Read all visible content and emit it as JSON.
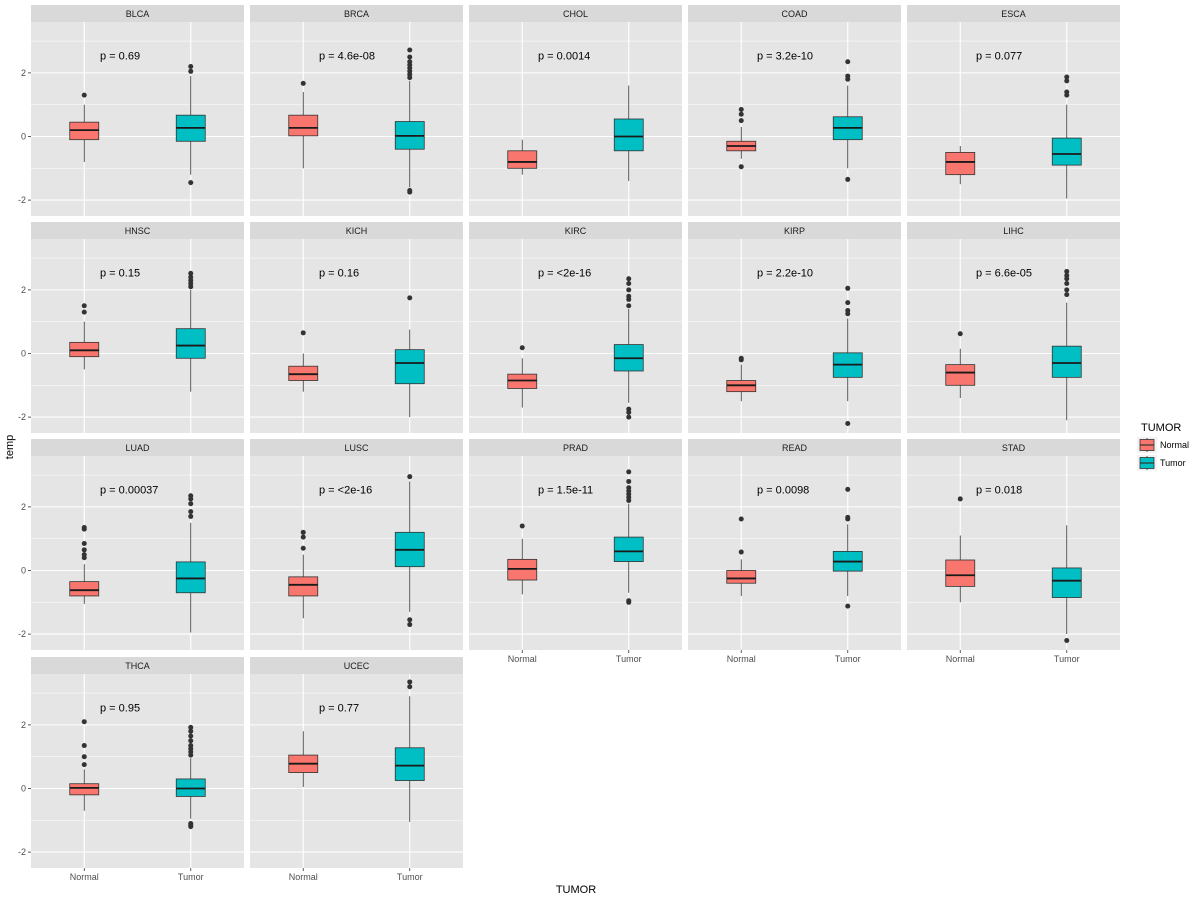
{
  "chart_data": {
    "type": "boxplot",
    "xlabel": "TUMOR",
    "ylabel": "temp",
    "ylim": [
      -2.5,
      3.6
    ],
    "yticks": [
      -2,
      0,
      2
    ],
    "ytick_labels": [
      "-2",
      "0",
      "2"
    ],
    "categories": [
      "Normal",
      "Tumor"
    ],
    "legend": {
      "title": "TUMOR",
      "position": "right",
      "entries": [
        {
          "label": "Normal",
          "color": "#F8766D"
        },
        {
          "label": "Tumor",
          "color": "#00BFC4"
        }
      ]
    },
    "colors": {
      "Normal": "#F8766D",
      "Tumor": "#00BFC4",
      "panel_bg": "#E5E5E5",
      "strip_bg": "#D9D9D9",
      "grid": "#FFFFFF"
    },
    "panels": [
      {
        "name": "BLCA",
        "p_label": "p = 0.69",
        "boxes": [
          {
            "group": "Normal",
            "min": -0.8,
            "q1": -0.1,
            "median": 0.2,
            "q3": 0.45,
            "max": 1.0,
            "outliers": [
              1.3
            ]
          },
          {
            "group": "Tumor",
            "min": -1.2,
            "q1": -0.15,
            "median": 0.27,
            "q3": 0.67,
            "max": 1.9,
            "outliers": [
              2.05,
              2.2,
              -1.45
            ]
          }
        ]
      },
      {
        "name": "BRCA",
        "p_label": "p = 4.6e-08",
        "boxes": [
          {
            "group": "Normal",
            "min": -1.0,
            "q1": 0.02,
            "median": 0.27,
            "q3": 0.67,
            "max": 1.4,
            "outliers": [
              1.67
            ]
          },
          {
            "group": "Tumor",
            "min": -1.6,
            "q1": -0.4,
            "median": 0.02,
            "q3": 0.47,
            "max": 1.75,
            "outliers": [
              1.85,
              1.95,
              2.05,
              2.15,
              2.25,
              2.35,
              2.5,
              2.72,
              -1.7,
              -1.75
            ]
          }
        ]
      },
      {
        "name": "CHOL",
        "p_label": "p = 0.0014",
        "boxes": [
          {
            "group": "Normal",
            "min": -1.2,
            "q1": -1.0,
            "median": -0.8,
            "q3": -0.45,
            "max": -0.1,
            "outliers": []
          },
          {
            "group": "Tumor",
            "min": -1.4,
            "q1": -0.45,
            "median": 0.0,
            "q3": 0.55,
            "max": 1.6,
            "outliers": []
          }
        ]
      },
      {
        "name": "COAD",
        "p_label": "p = 3.2e-10",
        "boxes": [
          {
            "group": "Normal",
            "min": -0.7,
            "q1": -0.45,
            "median": -0.3,
            "q3": -0.15,
            "max": 0.3,
            "outliers": [
              0.5,
              0.7,
              0.85,
              -0.95
            ]
          },
          {
            "group": "Tumor",
            "min": -1.0,
            "q1": -0.1,
            "median": 0.27,
            "q3": 0.62,
            "max": 1.6,
            "outliers": [
              1.8,
              1.9,
              2.35,
              -1.35
            ]
          }
        ]
      },
      {
        "name": "ESCA",
        "p_label": "p = 0.077",
        "boxes": [
          {
            "group": "Normal",
            "min": -1.5,
            "q1": -1.2,
            "median": -0.8,
            "q3": -0.5,
            "max": -0.3,
            "outliers": []
          },
          {
            "group": "Tumor",
            "min": -1.95,
            "q1": -0.9,
            "median": -0.55,
            "q3": -0.05,
            "max": 1.0,
            "outliers": [
              1.3,
              1.4,
              1.75,
              1.87
            ]
          }
        ]
      },
      {
        "name": "HNSC",
        "p_label": "p = 0.15",
        "boxes": [
          {
            "group": "Normal",
            "min": -0.5,
            "q1": -0.1,
            "median": 0.1,
            "q3": 0.35,
            "max": 1.0,
            "outliers": [
              1.3,
              1.5
            ]
          },
          {
            "group": "Tumor",
            "min": -1.2,
            "q1": -0.15,
            "median": 0.25,
            "q3": 0.78,
            "max": 2.0,
            "outliers": [
              2.1,
              2.2,
              2.3,
              2.4,
              2.52
            ]
          }
        ]
      },
      {
        "name": "KICH",
        "p_label": "p = 0.16",
        "boxes": [
          {
            "group": "Normal",
            "min": -1.2,
            "q1": -0.85,
            "median": -0.65,
            "q3": -0.4,
            "max": 0.0,
            "outliers": [
              0.65
            ]
          },
          {
            "group": "Tumor",
            "min": -2.0,
            "q1": -0.95,
            "median": -0.3,
            "q3": 0.12,
            "max": 0.75,
            "outliers": [
              1.75
            ]
          }
        ]
      },
      {
        "name": "KIRC",
        "p_label": "p = <2e-16",
        "boxes": [
          {
            "group": "Normal",
            "min": -1.7,
            "q1": -1.1,
            "median": -0.85,
            "q3": -0.65,
            "max": -0.15,
            "outliers": [
              0.18
            ]
          },
          {
            "group": "Tumor",
            "min": -1.55,
            "q1": -0.55,
            "median": -0.15,
            "q3": 0.28,
            "max": 1.4,
            "outliers": [
              1.5,
              1.7,
              1.8,
              2.0,
              2.2,
              2.35,
              -1.75,
              -1.85,
              -2.0
            ]
          }
        ]
      },
      {
        "name": "KIRP",
        "p_label": "p = 2.2e-10",
        "boxes": [
          {
            "group": "Normal",
            "min": -1.5,
            "q1": -1.2,
            "median": -1.0,
            "q3": -0.85,
            "max": -0.35,
            "outliers": [
              -0.2,
              -0.15
            ]
          },
          {
            "group": "Tumor",
            "min": -1.5,
            "q1": -0.75,
            "median": -0.35,
            "q3": 0.02,
            "max": 1.1,
            "outliers": [
              1.25,
              1.35,
              1.6,
              2.05,
              -2.2
            ]
          }
        ]
      },
      {
        "name": "LIHC",
        "p_label": "p = 6.6e-05",
        "boxes": [
          {
            "group": "Normal",
            "min": -1.4,
            "q1": -1.0,
            "median": -0.6,
            "q3": -0.35,
            "max": 0.15,
            "outliers": [
              0.62
            ]
          },
          {
            "group": "Tumor",
            "min": -2.1,
            "q1": -0.75,
            "median": -0.3,
            "q3": 0.23,
            "max": 1.6,
            "outliers": [
              1.85,
              2.0,
              2.2,
              2.35,
              2.45,
              2.58
            ]
          }
        ]
      },
      {
        "name": "LUAD",
        "p_label": "p = 0.00037",
        "boxes": [
          {
            "group": "Normal",
            "min": -1.05,
            "q1": -0.8,
            "median": -0.62,
            "q3": -0.35,
            "max": 0.2,
            "outliers": [
              0.4,
              0.5,
              0.65,
              0.85,
              1.3,
              1.35
            ]
          },
          {
            "group": "Tumor",
            "min": -1.95,
            "q1": -0.7,
            "median": -0.25,
            "q3": 0.27,
            "max": 1.5,
            "outliers": [
              1.7,
              1.85,
              2.1,
              2.25,
              2.35
            ]
          }
        ]
      },
      {
        "name": "LUSC",
        "p_label": "p = <2e-16",
        "boxes": [
          {
            "group": "Normal",
            "min": -1.5,
            "q1": -0.8,
            "median": -0.45,
            "q3": -0.2,
            "max": 0.5,
            "outliers": [
              0.7,
              1.05,
              1.2
            ]
          },
          {
            "group": "Tumor",
            "min": -1.3,
            "q1": 0.12,
            "median": 0.65,
            "q3": 1.2,
            "max": 2.8,
            "outliers": [
              2.95,
              -1.55,
              -1.7
            ]
          }
        ]
      },
      {
        "name": "PRAD",
        "p_label": "p = 1.5e-11",
        "boxes": [
          {
            "group": "Normal",
            "min": -0.75,
            "q1": -0.3,
            "median": 0.05,
            "q3": 0.35,
            "max": 1.0,
            "outliers": [
              1.4
            ]
          },
          {
            "group": "Tumor",
            "min": -0.7,
            "q1": 0.28,
            "median": 0.6,
            "q3": 1.05,
            "max": 2.1,
            "outliers": [
              2.2,
              2.3,
              2.4,
              2.5,
              2.6,
              2.8,
              3.1,
              -0.95,
              -1.0
            ]
          }
        ]
      },
      {
        "name": "READ",
        "p_label": "p = 0.0098",
        "boxes": [
          {
            "group": "Normal",
            "min": -0.8,
            "q1": -0.4,
            "median": -0.25,
            "q3": 0.0,
            "max": 0.35,
            "outliers": [
              0.58,
              1.62
            ]
          },
          {
            "group": "Tumor",
            "min": -0.8,
            "q1": -0.02,
            "median": 0.28,
            "q3": 0.6,
            "max": 1.45,
            "outliers": [
              1.62,
              1.67,
              2.55,
              -1.12
            ]
          }
        ]
      },
      {
        "name": "STAD",
        "p_label": "p = 0.018",
        "boxes": [
          {
            "group": "Normal",
            "min": -1.0,
            "q1": -0.5,
            "median": -0.15,
            "q3": 0.33,
            "max": 1.1,
            "outliers": [
              2.25
            ]
          },
          {
            "group": "Tumor",
            "min": -2.0,
            "q1": -0.85,
            "median": -0.32,
            "q3": 0.08,
            "max": 1.42,
            "outliers": [
              -2.2
            ]
          }
        ]
      },
      {
        "name": "THCA",
        "p_label": "p = 0.95",
        "boxes": [
          {
            "group": "Normal",
            "min": -0.7,
            "q1": -0.2,
            "median": 0.02,
            "q3": 0.15,
            "max": 0.6,
            "outliers": [
              0.75,
              1.0,
              1.35,
              2.1
            ]
          },
          {
            "group": "Tumor",
            "min": -0.95,
            "q1": -0.25,
            "median": 0.0,
            "q3": 0.3,
            "max": 0.95,
            "outliers": [
              1.05,
              1.15,
              1.25,
              1.35,
              1.5,
              1.65,
              1.8,
              1.92,
              -1.1,
              -1.15,
              -1.2
            ]
          }
        ]
      },
      {
        "name": "UCEC",
        "p_label": "p = 0.77",
        "boxes": [
          {
            "group": "Normal",
            "min": 0.05,
            "q1": 0.5,
            "median": 0.78,
            "q3": 1.05,
            "max": 1.8,
            "outliers": []
          },
          {
            "group": "Tumor",
            "min": -1.05,
            "q1": 0.25,
            "median": 0.72,
            "q3": 1.28,
            "max": 2.9,
            "outliers": [
              3.2,
              3.35
            ]
          }
        ]
      }
    ]
  }
}
